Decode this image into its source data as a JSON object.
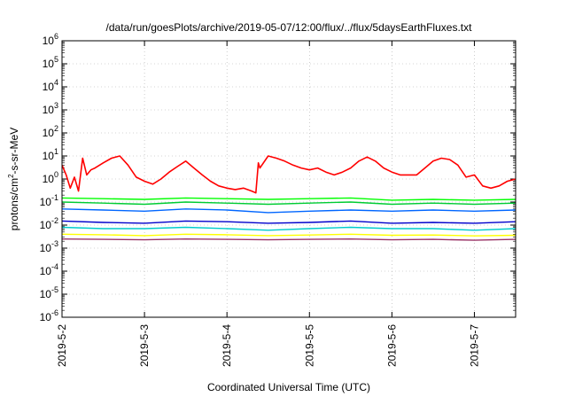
{
  "chart_data": {
    "type": "line",
    "title": "/data/run/goesPlots/archive/2019-05-07/12:00/flux/../flux/5daysEarthFluxes.txt",
    "xlabel": "Coordinated Universal Time (UTC)",
    "ylabel_base": "protons/cm",
    "ylabel_sup": "2",
    "ylabel_rest": "-s-sr-MeV",
    "y_scale": "log",
    "ylim": [
      1e-06,
      1000000.0
    ],
    "xlim": [
      "2019-05-02 00:00",
      "2019-05-07 12:00"
    ],
    "grid": true,
    "y_ticks": [
      {
        "base": "10",
        "exp": "-6",
        "value": 1e-06
      },
      {
        "base": "10",
        "exp": "-5",
        "value": 1e-05
      },
      {
        "base": "10",
        "exp": "-4",
        "value": 0.0001
      },
      {
        "base": "10",
        "exp": "-3",
        "value": 0.001
      },
      {
        "base": "10",
        "exp": "-2",
        "value": 0.01
      },
      {
        "base": "10",
        "exp": "-1",
        "value": 0.1
      },
      {
        "base": "10",
        "exp": "0",
        "value": 1
      },
      {
        "base": "10",
        "exp": "1",
        "value": 10
      },
      {
        "base": "10",
        "exp": "2",
        "value": 100
      },
      {
        "base": "10",
        "exp": "3",
        "value": 1000
      },
      {
        "base": "10",
        "exp": "4",
        "value": 10000
      },
      {
        "base": "10",
        "exp": "5",
        "value": 100000
      },
      {
        "base": "10",
        "exp": "6",
        "value": 1000000
      }
    ],
    "x_ticks": [
      "2019-5-2",
      "2019-5-3",
      "2019-5-4",
      "2019-5-5",
      "2019-5-6",
      "2019-5-7"
    ],
    "x_tick_days": [
      0,
      1,
      2,
      3,
      4,
      5
    ],
    "series": [
      {
        "color": "#ff0000",
        "x": [
          0.0,
          0.05,
          0.1,
          0.15,
          0.2,
          0.25,
          0.3,
          0.35,
          0.4,
          0.5,
          0.6,
          0.7,
          0.8,
          0.9,
          1.0,
          1.1,
          1.2,
          1.3,
          1.4,
          1.5,
          1.6,
          1.7,
          1.8,
          1.9,
          2.0,
          2.1,
          2.2,
          2.3,
          2.35,
          2.38,
          2.4,
          2.5,
          2.6,
          2.7,
          2.8,
          2.9,
          3.0,
          3.1,
          3.2,
          3.3,
          3.4,
          3.5,
          3.6,
          3.7,
          3.8,
          3.9,
          4.0,
          4.1,
          4.2,
          4.3,
          4.4,
          4.5,
          4.6,
          4.7,
          4.8,
          4.9,
          5.0,
          5.1,
          5.2,
          5.3,
          5.4,
          5.5
        ],
        "y": [
          4,
          1.5,
          0.4,
          1.2,
          0.3,
          8,
          1.5,
          2.5,
          3,
          5,
          8,
          10,
          4,
          1.2,
          0.8,
          0.6,
          1,
          2,
          3.5,
          6,
          3,
          1.5,
          0.8,
          0.5,
          0.4,
          0.35,
          0.4,
          0.3,
          0.25,
          5,
          3,
          10,
          8,
          6,
          4,
          3,
          2.5,
          3,
          2,
          1.5,
          2,
          3,
          6,
          9,
          6,
          3,
          2,
          1.5,
          1.5,
          1.5,
          3,
          6,
          8,
          7,
          4,
          1.2,
          1.5,
          0.5,
          0.4,
          0.5,
          0.8,
          1
        ]
      },
      {
        "color": "#00ff00",
        "x": [
          0.0,
          0.5,
          1.0,
          1.5,
          2.0,
          2.5,
          3.0,
          3.5,
          4.0,
          4.5,
          5.0,
          5.5
        ],
        "y": [
          0.15,
          0.14,
          0.13,
          0.15,
          0.14,
          0.13,
          0.14,
          0.15,
          0.12,
          0.13,
          0.12,
          0.13
        ]
      },
      {
        "color": "#00cc33",
        "x": [
          0.0,
          0.5,
          1.0,
          1.5,
          2.0,
          2.5,
          3.0,
          3.5,
          4.0,
          4.5,
          5.0,
          5.5
        ],
        "y": [
          0.1,
          0.09,
          0.08,
          0.1,
          0.09,
          0.08,
          0.09,
          0.1,
          0.08,
          0.09,
          0.08,
          0.09
        ]
      },
      {
        "color": "#0066ff",
        "x": [
          0.0,
          0.5,
          1.0,
          1.5,
          2.0,
          2.5,
          3.0,
          3.5,
          4.0,
          4.5,
          5.0,
          5.5
        ],
        "y": [
          0.05,
          0.045,
          0.04,
          0.05,
          0.045,
          0.035,
          0.04,
          0.045,
          0.04,
          0.045,
          0.04,
          0.045
        ]
      },
      {
        "color": "#0000cc",
        "x": [
          0.0,
          0.5,
          1.0,
          1.5,
          2.0,
          2.5,
          3.0,
          3.5,
          4.0,
          4.5,
          5.0,
          5.5
        ],
        "y": [
          0.015,
          0.013,
          0.012,
          0.015,
          0.014,
          0.012,
          0.013,
          0.015,
          0.012,
          0.013,
          0.012,
          0.014
        ]
      },
      {
        "color": "#00cccc",
        "x": [
          0.0,
          0.5,
          1.0,
          1.5,
          2.0,
          2.5,
          3.0,
          3.5,
          4.0,
          4.5,
          5.0,
          5.5
        ],
        "y": [
          0.008,
          0.007,
          0.007,
          0.008,
          0.007,
          0.006,
          0.007,
          0.008,
          0.007,
          0.007,
          0.006,
          0.007
        ]
      },
      {
        "color": "#ffff00",
        "x": [
          0.0,
          0.5,
          1.0,
          1.5,
          2.0,
          2.5,
          3.0,
          3.5,
          4.0,
          4.5,
          5.0,
          5.5
        ],
        "y": [
          0.004,
          0.0038,
          0.0035,
          0.004,
          0.0038,
          0.0035,
          0.0037,
          0.004,
          0.0036,
          0.0037,
          0.0034,
          0.0036
        ]
      },
      {
        "color": "#993366",
        "x": [
          0.0,
          0.5,
          1.0,
          1.5,
          2.0,
          2.5,
          3.0,
          3.5,
          4.0,
          4.5,
          5.0,
          5.5
        ],
        "y": [
          0.0025,
          0.0024,
          0.0023,
          0.0025,
          0.0024,
          0.0023,
          0.0024,
          0.0025,
          0.0023,
          0.0024,
          0.0022,
          0.0024
        ]
      }
    ]
  }
}
